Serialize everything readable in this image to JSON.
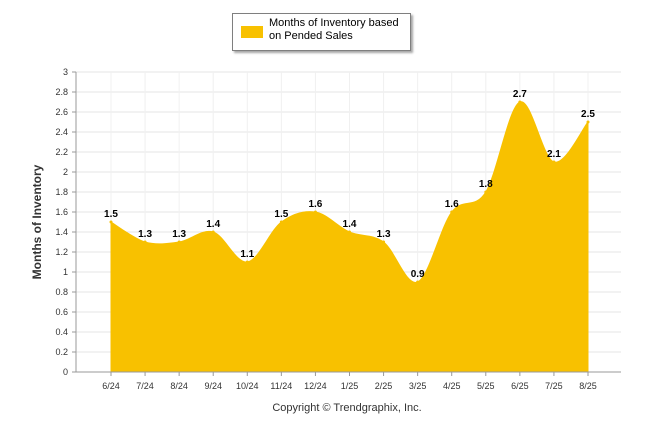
{
  "chart_data": {
    "type": "area",
    "categories": [
      "6/24",
      "7/24",
      "8/24",
      "9/24",
      "10/24",
      "11/24",
      "12/24",
      "1/25",
      "2/25",
      "3/25",
      "4/25",
      "5/25",
      "6/25",
      "7/25",
      "8/25"
    ],
    "series": [
      {
        "name": "Months of Inventory based on Pended Sales",
        "values": [
          1.5,
          1.3,
          1.3,
          1.4,
          1.1,
          1.5,
          1.6,
          1.4,
          1.3,
          0.9,
          1.6,
          1.8,
          2.7,
          2.1,
          2.5
        ]
      }
    ],
    "data_labels": [
      "1.5",
      "1.3",
      "1.3",
      "1.4",
      "1.1",
      "1.5",
      "1.6",
      "1.4",
      "1.3",
      "0.9",
      "1.6",
      "1.8",
      "2.7",
      "2.1",
      "2.5"
    ],
    "ylabel": "Months of Inventory",
    "xlabel": "",
    "ylim": [
      0,
      3
    ],
    "yticks": [
      "0",
      "0.2",
      "0.4",
      "0.6",
      "0.8",
      "1",
      "1.2",
      "1.4",
      "1.6",
      "1.8",
      "2",
      "2.2",
      "2.4",
      "2.6",
      "2.8",
      "3"
    ],
    "grid": true,
    "legend_position": "top-center",
    "colors": {
      "fill": "#f8c100",
      "grid": "#e6e6e6",
      "axis": "#333333"
    }
  },
  "legend": {
    "label": "Months of Inventory based on Pended Sales"
  },
  "footer": {
    "copyright": "Copyright © Trendgraphix, Inc."
  }
}
